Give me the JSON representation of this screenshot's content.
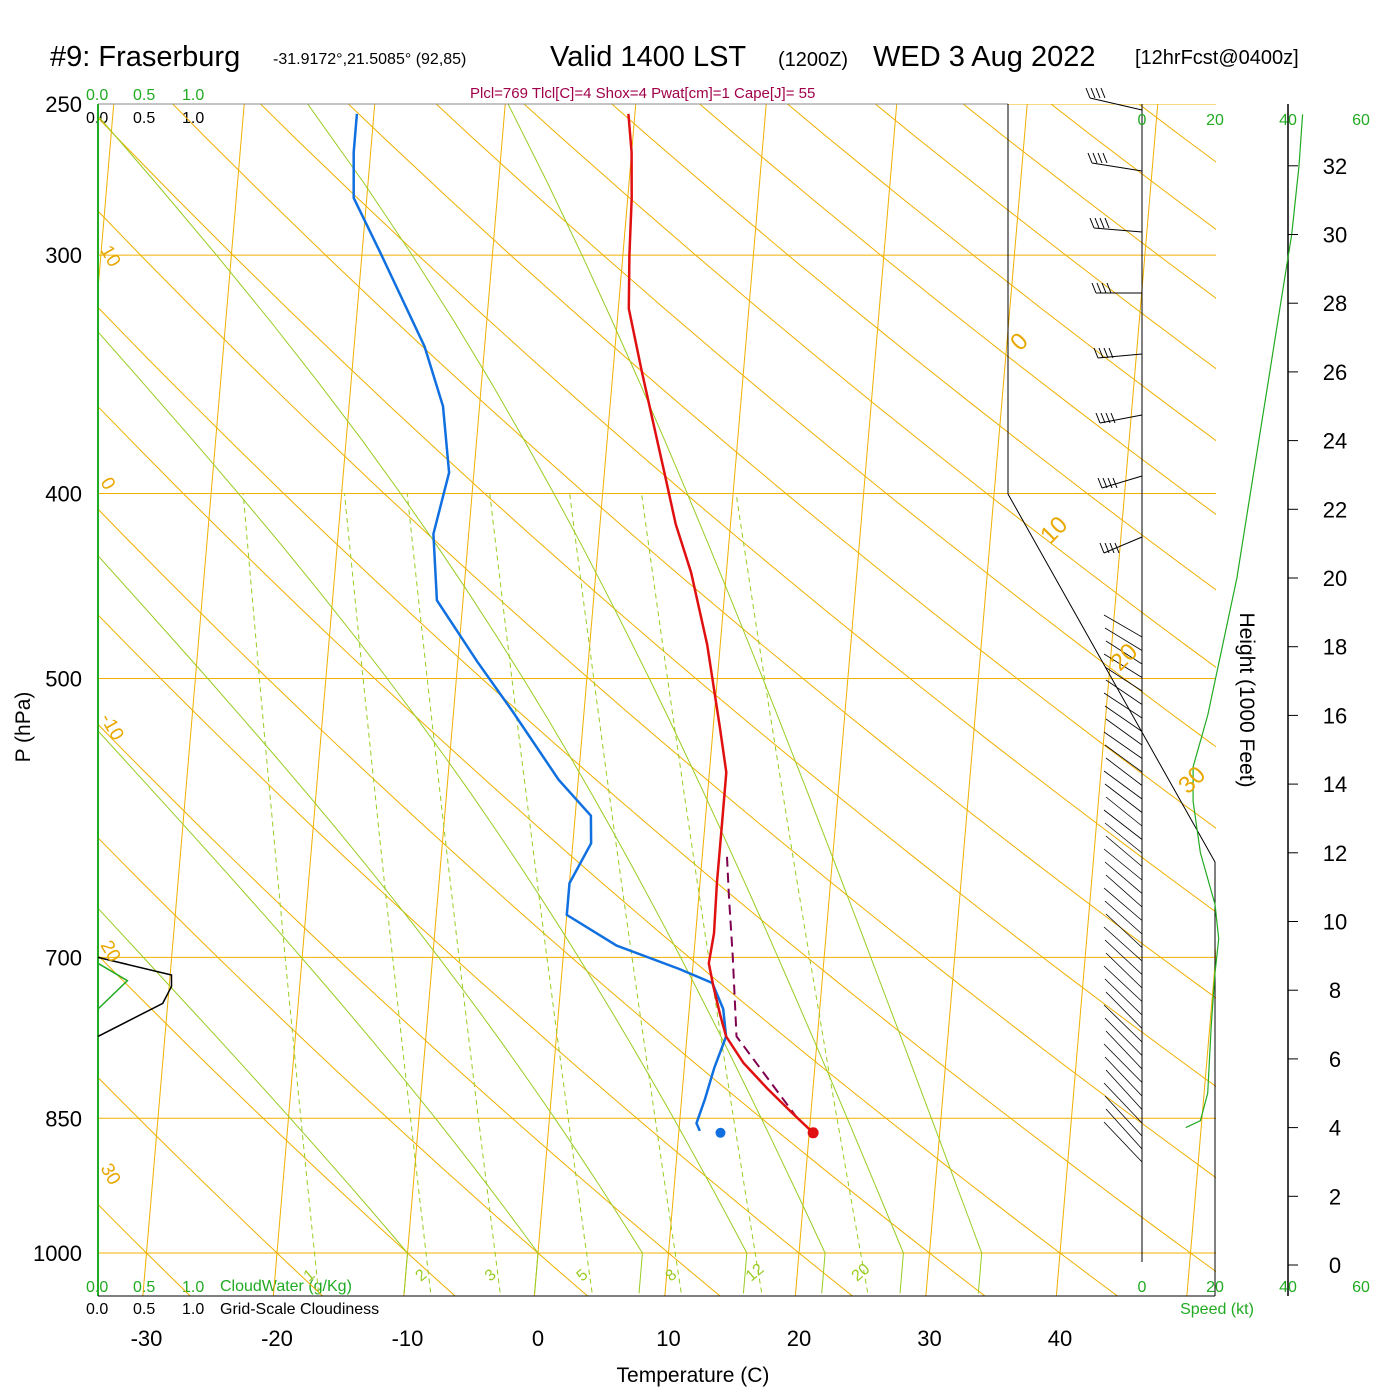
{
  "title": {
    "station": "#9: Fraserburg",
    "coords": "-31.9172°,21.5085° (92,85)",
    "valid": "Valid 1400 LST",
    "zulu": "(1200Z)",
    "date": "WED 3 Aug 2022",
    "forecast": "[12hrFcst@0400z]"
  },
  "stats": "Plcl=769 Tlcl[C]=4 Shox=4 Pwat[cm]=1 Cape[J]= 55",
  "legend": {
    "cloud_water": "CloudWater (g/Kg)",
    "cloudiness": "Grid-Scale Cloudiness",
    "scale": [
      "0.0",
      "0.5",
      "1.0"
    ]
  },
  "axes": {
    "xlabel": "Temperature (C)",
    "ylabel": "P (hPa)",
    "height_label": "Height (1000 Feet)",
    "speed_label": "Speed (kt)"
  },
  "colors": {
    "temperature": "#e01010",
    "dewpoint": "#1070e0",
    "parcel": "#800050",
    "isobar_isotherm": "#f0b000",
    "mixing_ratio": "#99cc22",
    "adiabat": "#99cc22",
    "cloud": "#22aa22",
    "speed": "#22aa22"
  },
  "chart_data": {
    "type": "skew-t log-p sounding",
    "pressure_ticks": [
      250,
      300,
      400,
      500,
      700,
      850,
      1000
    ],
    "temperature_ticks": [
      -30,
      -20,
      -10,
      0,
      10,
      20,
      30,
      40
    ],
    "height_ticks": [
      0,
      2,
      4,
      6,
      8,
      10,
      12,
      14,
      16,
      18,
      20,
      22,
      24,
      26,
      28,
      30,
      32
    ],
    "speed_ticks": [
      0,
      20,
      40,
      60
    ],
    "isotherm_labels": [
      30,
      20,
      10,
      0,
      -10,
      -20,
      -30
    ],
    "isotherm_labels_right": [
      0,
      10,
      20,
      30
    ],
    "mixing_ratio_labels": [
      1,
      2,
      3,
      5,
      8,
      12,
      20
    ],
    "temperature_profile": [
      {
        "p": 865,
        "t": 20.3
      },
      {
        "p": 845,
        "t": 18.6
      },
      {
        "p": 820,
        "t": 16.5
      },
      {
        "p": 795,
        "t": 14.5
      },
      {
        "p": 770,
        "t": 13.0
      },
      {
        "p": 750,
        "t": 12.4
      },
      {
        "p": 725,
        "t": 11.7
      },
      {
        "p": 705,
        "t": 11.2
      },
      {
        "p": 680,
        "t": 11.4
      },
      {
        "p": 640,
        "t": 11.3
      },
      {
        "p": 600,
        "t": 11.3
      },
      {
        "p": 560,
        "t": 11.3
      },
      {
        "p": 530,
        "t": 10.5
      },
      {
        "p": 480,
        "t": 9.0
      },
      {
        "p": 440,
        "t": 7.3
      },
      {
        "p": 415,
        "t": 5.8
      },
      {
        "p": 390,
        "t": 4.6
      },
      {
        "p": 365,
        "t": 3.3
      },
      {
        "p": 345,
        "t": 2.2
      },
      {
        "p": 320,
        "t": 0.8
      },
      {
        "p": 300,
        "t": 0.5
      },
      {
        "p": 280,
        "t": 0.3
      },
      {
        "p": 265,
        "t": 0.0
      },
      {
        "p": 253,
        "t": -0.5
      }
    ],
    "dewpoint_profile": [
      {
        "p": 863,
        "t": 11.6
      },
      {
        "p": 855,
        "t": 11.3
      },
      {
        "p": 830,
        "t": 11.8
      },
      {
        "p": 800,
        "t": 12.3
      },
      {
        "p": 770,
        "t": 13.0
      },
      {
        "p": 745,
        "t": 12.6
      },
      {
        "p": 722,
        "t": 11.6
      },
      {
        "p": 710,
        "t": 9.0
      },
      {
        "p": 690,
        "t": 4.0
      },
      {
        "p": 665,
        "t": 0.0
      },
      {
        "p": 640,
        "t": 0.0
      },
      {
        "p": 610,
        "t": 1.4
      },
      {
        "p": 590,
        "t": 1.2
      },
      {
        "p": 565,
        "t": -1.5
      },
      {
        "p": 520,
        "t": -5.5
      },
      {
        "p": 490,
        "t": -8.5
      },
      {
        "p": 455,
        "t": -12.0
      },
      {
        "p": 420,
        "t": -12.7
      },
      {
        "p": 390,
        "t": -11.9
      },
      {
        "p": 360,
        "t": -12.8
      },
      {
        "p": 335,
        "t": -14.6
      },
      {
        "p": 300,
        "t": -18.5
      },
      {
        "p": 280,
        "t": -21.0
      },
      {
        "p": 265,
        "t": -21.3
      },
      {
        "p": 253,
        "t": -21.3
      }
    ],
    "surface_temperature": {
      "p": 865,
      "t": 20.3
    },
    "surface_dewpoint": {
      "p": 865,
      "t": 13.2
    },
    "parcel_path": [
      {
        "p": 850,
        "t": 19.0
      },
      {
        "p": 770,
        "t": 13.8
      },
      {
        "p": 700,
        "t": 13.0
      },
      {
        "p": 650,
        "t": 12.3
      },
      {
        "p": 620,
        "t": 11.9
      }
    ],
    "cloudiness_profile": [
      {
        "p": 700,
        "v": 0.0
      },
      {
        "p": 715,
        "v": 0.75
      },
      {
        "p": 725,
        "v": 0.75
      },
      {
        "p": 740,
        "v": 0.66
      },
      {
        "p": 770,
        "v": 0.0
      }
    ],
    "cloud_water_profile": [
      {
        "p": 705,
        "v": 0.0
      },
      {
        "p": 720,
        "v": 0.3
      },
      {
        "p": 745,
        "v": 0.0
      }
    ],
    "wind_speed_profile": [
      {
        "h": 4,
        "s": 12
      },
      {
        "h": 4.2,
        "s": 16
      },
      {
        "h": 5,
        "s": 18
      },
      {
        "h": 7,
        "s": 19
      },
      {
        "h": 8.5,
        "s": 20
      },
      {
        "h": 9.5,
        "s": 21
      },
      {
        "h": 10.5,
        "s": 20
      },
      {
        "h": 12,
        "s": 16
      },
      {
        "h": 13.5,
        "s": 14
      },
      {
        "h": 14.5,
        "s": 14
      },
      {
        "h": 16,
        "s": 18
      },
      {
        "h": 18,
        "s": 22
      },
      {
        "h": 20,
        "s": 26
      },
      {
        "h": 22,
        "s": 29
      },
      {
        "h": 24,
        "s": 32
      },
      {
        "h": 26,
        "s": 35
      },
      {
        "h": 28,
        "s": 38
      },
      {
        "h": 30,
        "s": 41
      },
      {
        "h": 32,
        "s": 43
      },
      {
        "h": 33.5,
        "s": 44
      }
    ]
  }
}
